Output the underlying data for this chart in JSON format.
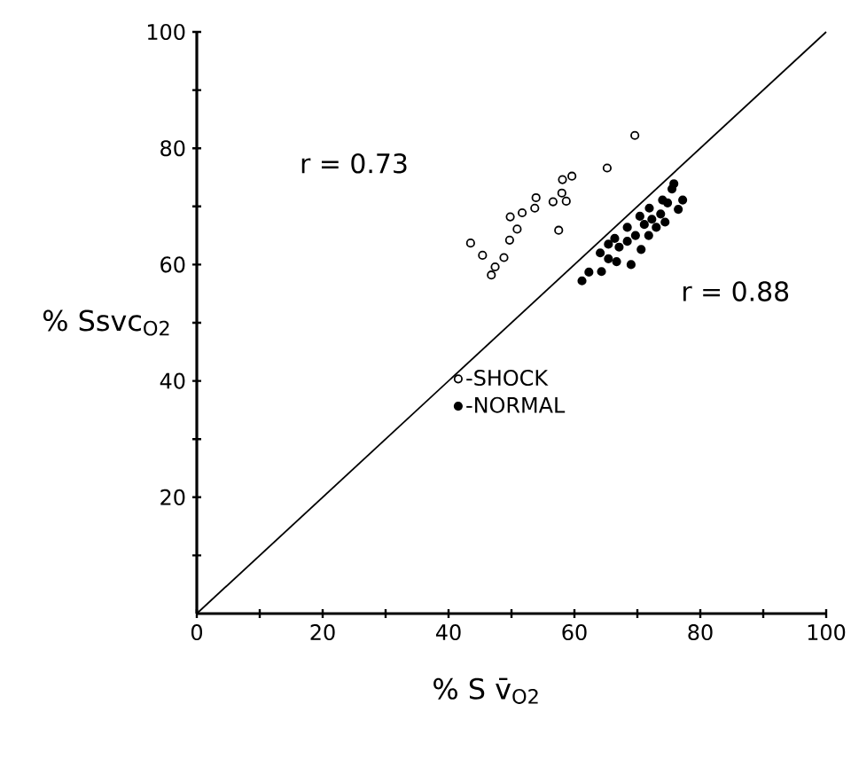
{
  "chart_data": {
    "type": "scatter",
    "xlabel": "% S v̄$_{O2}$",
    "ylabel": "% Ssvc$_{O2}$",
    "xlim": [
      0,
      100
    ],
    "ylim": [
      0,
      100
    ],
    "xticks": [
      0,
      {
        "value": 10,
        "label": null
      },
      20,
      {
        "value": 30,
        "label": null
      },
      40,
      {
        "value": 50,
        "label": null
      },
      60,
      {
        "value": 70,
        "label": null
      },
      80,
      {
        "value": 90,
        "label": null
      },
      100
    ],
    "yticks": [
      {
        "value": 10,
        "label": null
      },
      20,
      {
        "value": 30,
        "label": null
      },
      40,
      {
        "value": 50,
        "label": null
      },
      60,
      {
        "value": 70,
        "label": null
      },
      80,
      {
        "value": 90,
        "label": null
      },
      100
    ],
    "grid": false,
    "legend": "center",
    "series": [
      {
        "name": "-SHOCK",
        "color": "#000000",
        "marker": "circle",
        "x": [
          43.5,
          45.4,
          47.4,
          46.8,
          48.8,
          49.7,
          49.8,
          50.9,
          51.7,
          53.7,
          53.9,
          56.6,
          57.5,
          58.0,
          58.7,
          58.1,
          59.6,
          65.2,
          69.6
        ],
        "values": [
          63.7,
          61.6,
          59.6,
          58.2,
          61.2,
          64.2,
          68.2,
          66.1,
          68.9,
          69.7,
          71.5,
          70.8,
          65.9,
          72.3,
          70.9,
          74.6,
          75.2,
          76.6,
          82.2
        ]
      },
      {
        "name": "-NORMAL",
        "color": "#000000",
        "marker": "circle",
        "x": [
          61.2,
          62.3,
          64.3,
          64.1,
          65.4,
          65.4,
          66.7,
          67.1,
          68.4,
          69.0,
          69.7,
          70.6,
          71.1,
          71.8,
          72.3,
          73.0,
          73.7,
          74.4,
          74.8,
          75.5,
          75.8,
          76.5,
          77.2,
          70.4,
          71.9,
          68.4,
          74.0,
          66.4
        ],
        "values": [
          57.2,
          58.7,
          58.8,
          62.0,
          63.5,
          61.0,
          60.5,
          63.0,
          64.0,
          60.0,
          65.0,
          62.6,
          66.9,
          65.0,
          67.8,
          66.4,
          68.7,
          67.3,
          70.6,
          73.0,
          73.9,
          69.5,
          71.1,
          68.3,
          69.7,
          66.4,
          71.1,
          64.5
        ]
      },
      {
        "type": "line",
        "color": "#000000",
        "marker": "none",
        "x": [
          0,
          100
        ],
        "values": [
          0,
          100
        ]
      }
    ],
    "annotations": [
      "r = 0.73",
      "r = 0.88"
    ]
  }
}
